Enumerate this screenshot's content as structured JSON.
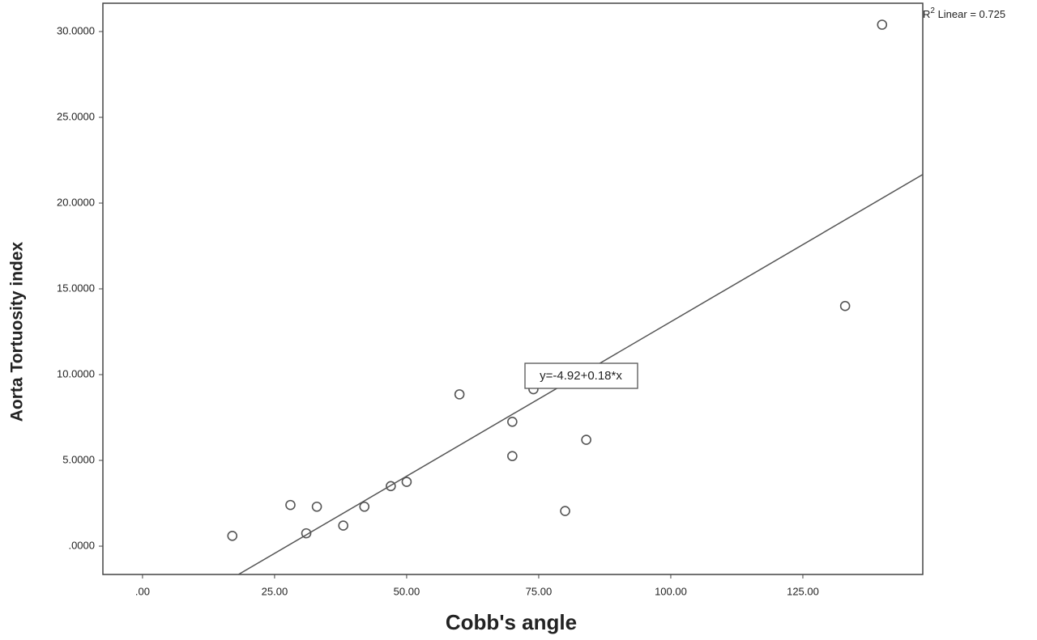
{
  "chart_data": {
    "type": "scatter",
    "x_label": "Cobb's angle",
    "y_label": "Aorta Tortuosity index",
    "x": [
      17,
      28,
      31,
      33,
      38,
      42,
      47,
      50,
      60,
      70,
      70,
      74,
      80,
      84,
      133,
      140
    ],
    "values": [
      0.6,
      2.4,
      0.75,
      2.3,
      1.2,
      2.3,
      3.5,
      3.75,
      8.85,
      7.25,
      5.25,
      9.15,
      2.05,
      6.2,
      14.0,
      30.4
    ],
    "color": "#555555",
    "xlim": [
      -7.5,
      147.7
    ],
    "ylim": [
      -1.65,
      31.65
    ],
    "xticks": [
      {
        "value": 0,
        "label": ".00"
      },
      {
        "value": 25,
        "label": "25.00"
      },
      {
        "value": 50,
        "label": "50.00"
      },
      {
        "value": 75,
        "label": "75.00"
      },
      {
        "value": 100,
        "label": "100.00"
      },
      {
        "value": 125,
        "label": "125.00"
      }
    ],
    "yticks": [
      {
        "value": 0,
        "label": ".0000"
      },
      {
        "value": 5,
        "label": "5.0000"
      },
      {
        "value": 10,
        "label": "10.0000"
      },
      {
        "value": 15,
        "label": "15.0000"
      },
      {
        "value": 20,
        "label": "20.0000"
      },
      {
        "value": 25,
        "label": "25.0000"
      },
      {
        "value": 30,
        "label": "30.0000"
      }
    ],
    "fit": {
      "intercept": -4.92,
      "slope": 0.18,
      "label": "y=-4.92+0.18*x",
      "color": "#555555"
    },
    "r2_annotation": {
      "base": "R",
      "sup": "2",
      "text": " Linear = 0.725"
    }
  }
}
